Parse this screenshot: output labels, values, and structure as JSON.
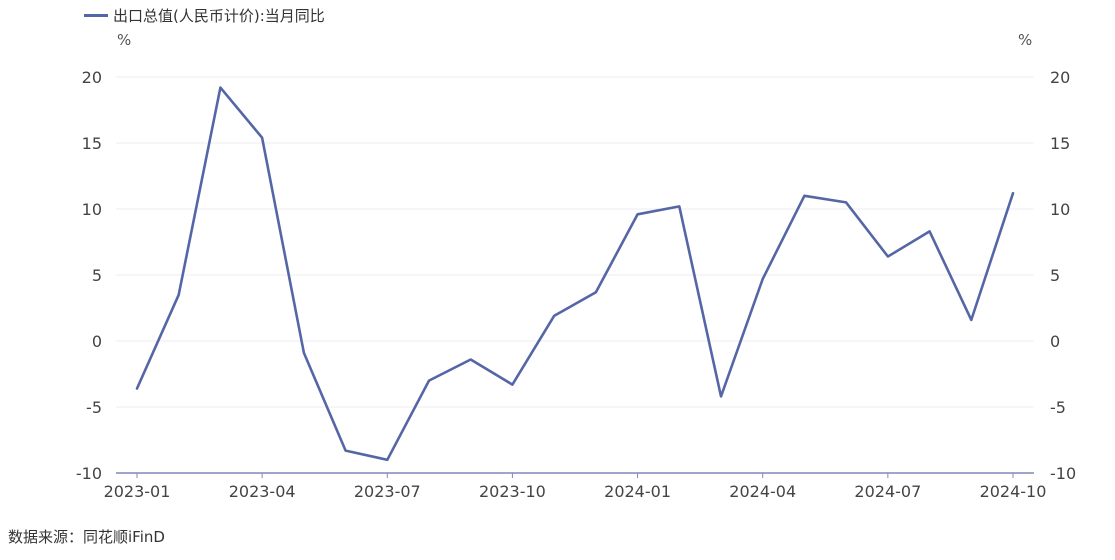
{
  "legend": {
    "label": "出口总值(人民币计价):当月同比",
    "color": "#5566A6"
  },
  "units": {
    "left": "%",
    "right": "%"
  },
  "source": "数据来源：同花顺iFinD",
  "colors": {
    "line": "#5566A6",
    "grid": "#ECECF2",
    "axis": "#8088B8"
  },
  "chart_data": {
    "type": "line",
    "x": [
      "2023-01",
      "2023-02",
      "2023-03",
      "2023-04",
      "2023-05",
      "2023-06",
      "2023-07",
      "2023-08",
      "2023-09",
      "2023-10",
      "2023-11",
      "2023-12",
      "2024-01",
      "2024-02",
      "2024-03",
      "2024-04",
      "2024-05",
      "2024-06",
      "2024-07",
      "2024-08",
      "2024-09",
      "2024-10"
    ],
    "series": [
      {
        "name": "出口总值(人民币计价):当月同比",
        "values": [
          -3.6,
          3.5,
          19.2,
          15.4,
          -0.9,
          -8.3,
          -9.0,
          -3.0,
          -1.4,
          -3.3,
          1.9,
          3.7,
          9.6,
          10.2,
          -4.2,
          4.7,
          11.0,
          10.5,
          6.4,
          8.3,
          1.6,
          11.2
        ]
      }
    ],
    "xticks": [
      "2023-01",
      "2023-04",
      "2023-07",
      "2023-10",
      "2024-01",
      "2024-04",
      "2024-07",
      "2024-10"
    ],
    "yticks": [
      20,
      15,
      10,
      5,
      0,
      -5,
      -10
    ],
    "ylim": [
      -10,
      20
    ],
    "grid": true,
    "legend_position": "top-left"
  }
}
